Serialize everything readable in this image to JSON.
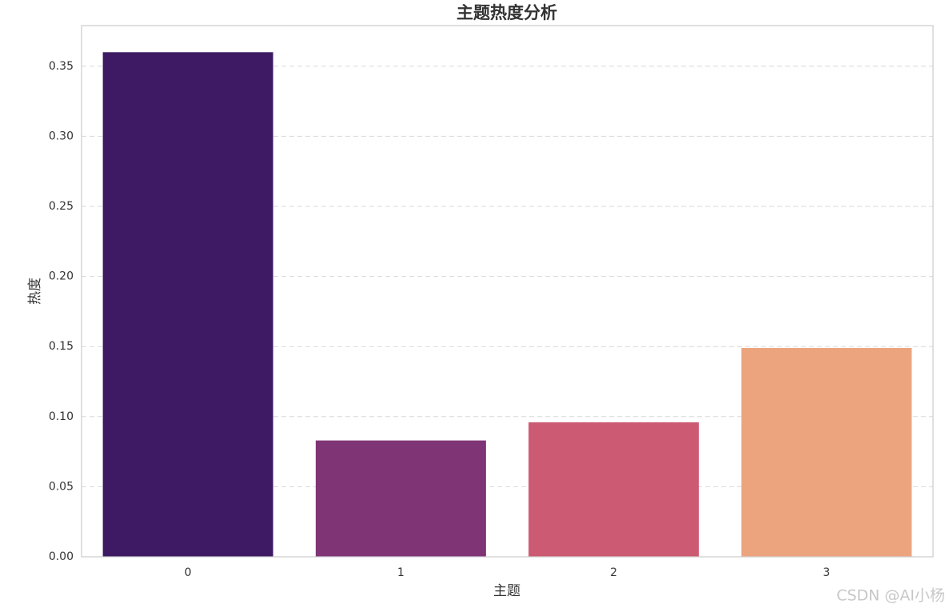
{
  "chart_data": {
    "type": "bar",
    "title": "主题热度分析",
    "x_label": "主题",
    "y_label": "热度",
    "categories": [
      "0",
      "1",
      "2",
      "3"
    ],
    "values": [
      0.36,
      0.083,
      0.096,
      0.149
    ],
    "colors": [
      "#3d1a63",
      "#7f3475",
      "#cb5a72",
      "#eca47e"
    ],
    "ylim": [
      0,
      0.379
    ],
    "yticks": [
      {
        "value": 0,
        "label": "0.00"
      },
      0.05,
      {
        "value": 0.1,
        "label": "0.10"
      },
      0.15,
      {
        "value": 0.2,
        "label": "0.20"
      },
      0.25,
      {
        "value": 0.3,
        "label": "0.30"
      },
      0.35
    ],
    "grid": true,
    "watermark": "CSDN @AI小杨"
  }
}
